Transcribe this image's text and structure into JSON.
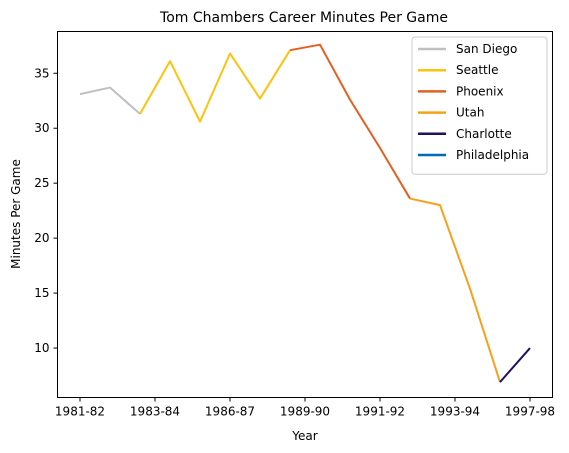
{
  "chart_data": {
    "type": "line",
    "title": "Tom Chambers  Career Minutes Per Game",
    "xlabel": "Year",
    "ylabel": "Minutes Per Game",
    "x_ticks": [
      "1981-82",
      "1983-84",
      "1986-87",
      "1989-90",
      "1991-92",
      "1993-94",
      "1997-98"
    ],
    "x_tick_positions": [
      0,
      2.5,
      5,
      7.5,
      10,
      12.5,
      15
    ],
    "ylim": [
      5.5,
      38.8
    ],
    "y_ticks": [
      10,
      15,
      20,
      25,
      30,
      35
    ],
    "legend_position": "top-right",
    "series": [
      {
        "name": "San Diego",
        "color": "#c0c0c0",
        "x": [
          0,
          1,
          2
        ],
        "values": [
          33.1,
          33.7,
          31.3
        ]
      },
      {
        "name": "Seattle",
        "color": "#ffc20e",
        "x": [
          2,
          3,
          4,
          5,
          6,
          7
        ],
        "values": [
          31.3,
          36.1,
          30.6,
          36.8,
          32.7,
          37.1
        ]
      },
      {
        "name": "Phoenix",
        "color": "#e56020",
        "x": [
          7,
          8,
          9,
          10,
          11
        ],
        "values": [
          37.1,
          37.6,
          32.6,
          28.2,
          23.6
        ]
      },
      {
        "name": "Utah",
        "color": "#f9a01b",
        "x": [
          11,
          12,
          13,
          14
        ],
        "values": [
          23.6,
          23.0,
          15.4,
          6.9
        ]
      },
      {
        "name": "Charlotte",
        "color": "#1d1160",
        "x": [
          14,
          15
        ],
        "values": [
          6.9,
          10.0
        ]
      },
      {
        "name": "Philadelphia",
        "color": "#006bb6",
        "x": [],
        "values": []
      }
    ]
  }
}
